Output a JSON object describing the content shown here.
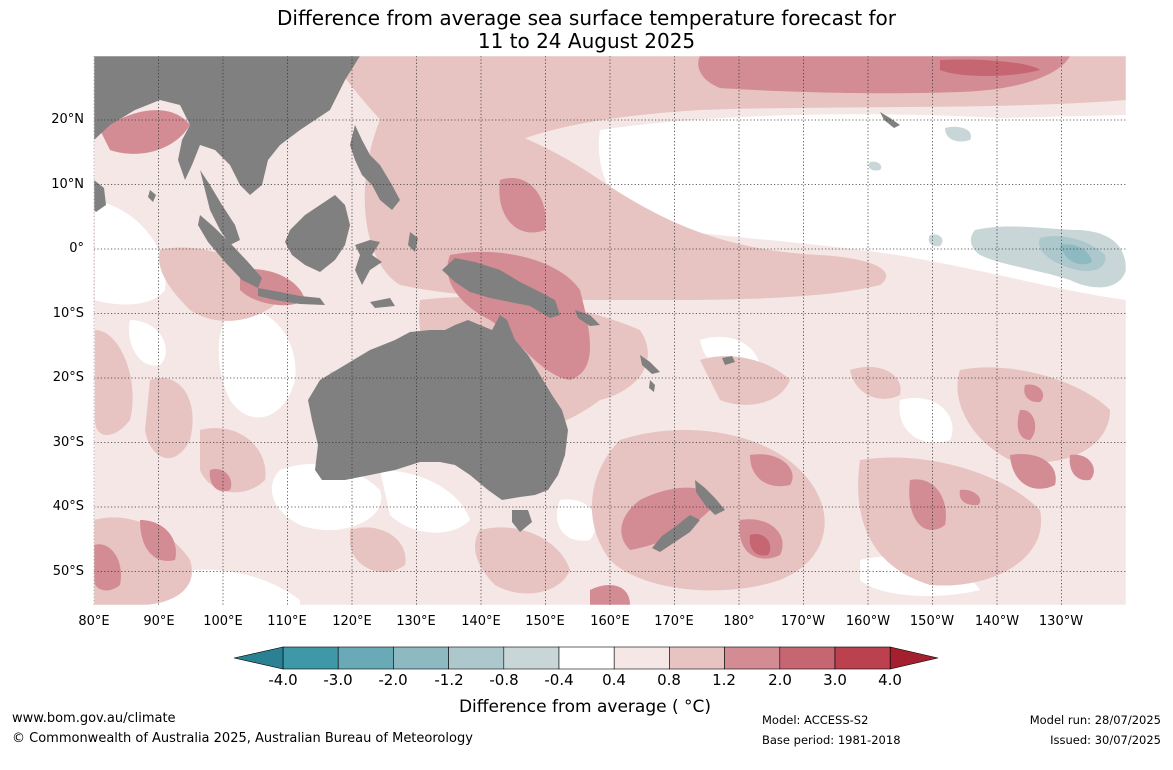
{
  "title": {
    "line1": "Difference from average sea surface temperature forecast for",
    "line2": "11 to 24 August 2025"
  },
  "map": {
    "region": "Indo-Pacific and Australia",
    "lon_range": [
      "80°E",
      "125°W"
    ],
    "lat_range": [
      "55°S",
      "29°N"
    ],
    "gridlines": true,
    "land_color": "#808080",
    "lat_labels": [
      "20°N",
      "10°N",
      "0°",
      "10°S",
      "20°S",
      "30°S",
      "40°S",
      "50°S"
    ],
    "lon_labels": [
      "80°E",
      "90°E",
      "100°E",
      "110°E",
      "120°E",
      "130°E",
      "140°E",
      "150°E",
      "160°E",
      "170°E",
      "180°",
      "170°W",
      "160°W",
      "150°W",
      "140°W",
      "130°W"
    ]
  },
  "colorbar": {
    "ticks": [
      "-4.0",
      "-3.0",
      "-2.0",
      "-1.2",
      "-0.8",
      "-0.4",
      "0.4",
      "0.8",
      "1.2",
      "2.0",
      "3.0",
      "4.0"
    ],
    "colors": [
      "#3f98a8",
      "#6aaab7",
      "#8db9c1",
      "#adc8cc",
      "#c9d6d8",
      "#ffffff",
      "#f4e7e6",
      "#e7c4c1",
      "#d38c93",
      "#c56672",
      "#bb414f"
    ],
    "under_color": "#2a8193",
    "over_color": "#a5202f",
    "label": "Difference from average ( °C)"
  },
  "footer": {
    "website": "www.bom.gov.au/climate",
    "copyright": "© Commonwealth of Australia 2025, Australian Bureau of Meteorology",
    "model": "Model: ACCESS-S2",
    "base_period": "Base period: 1981-2018",
    "model_run": "Model run: 28/07/2025",
    "issued": "Issued: 30/07/2025"
  }
}
